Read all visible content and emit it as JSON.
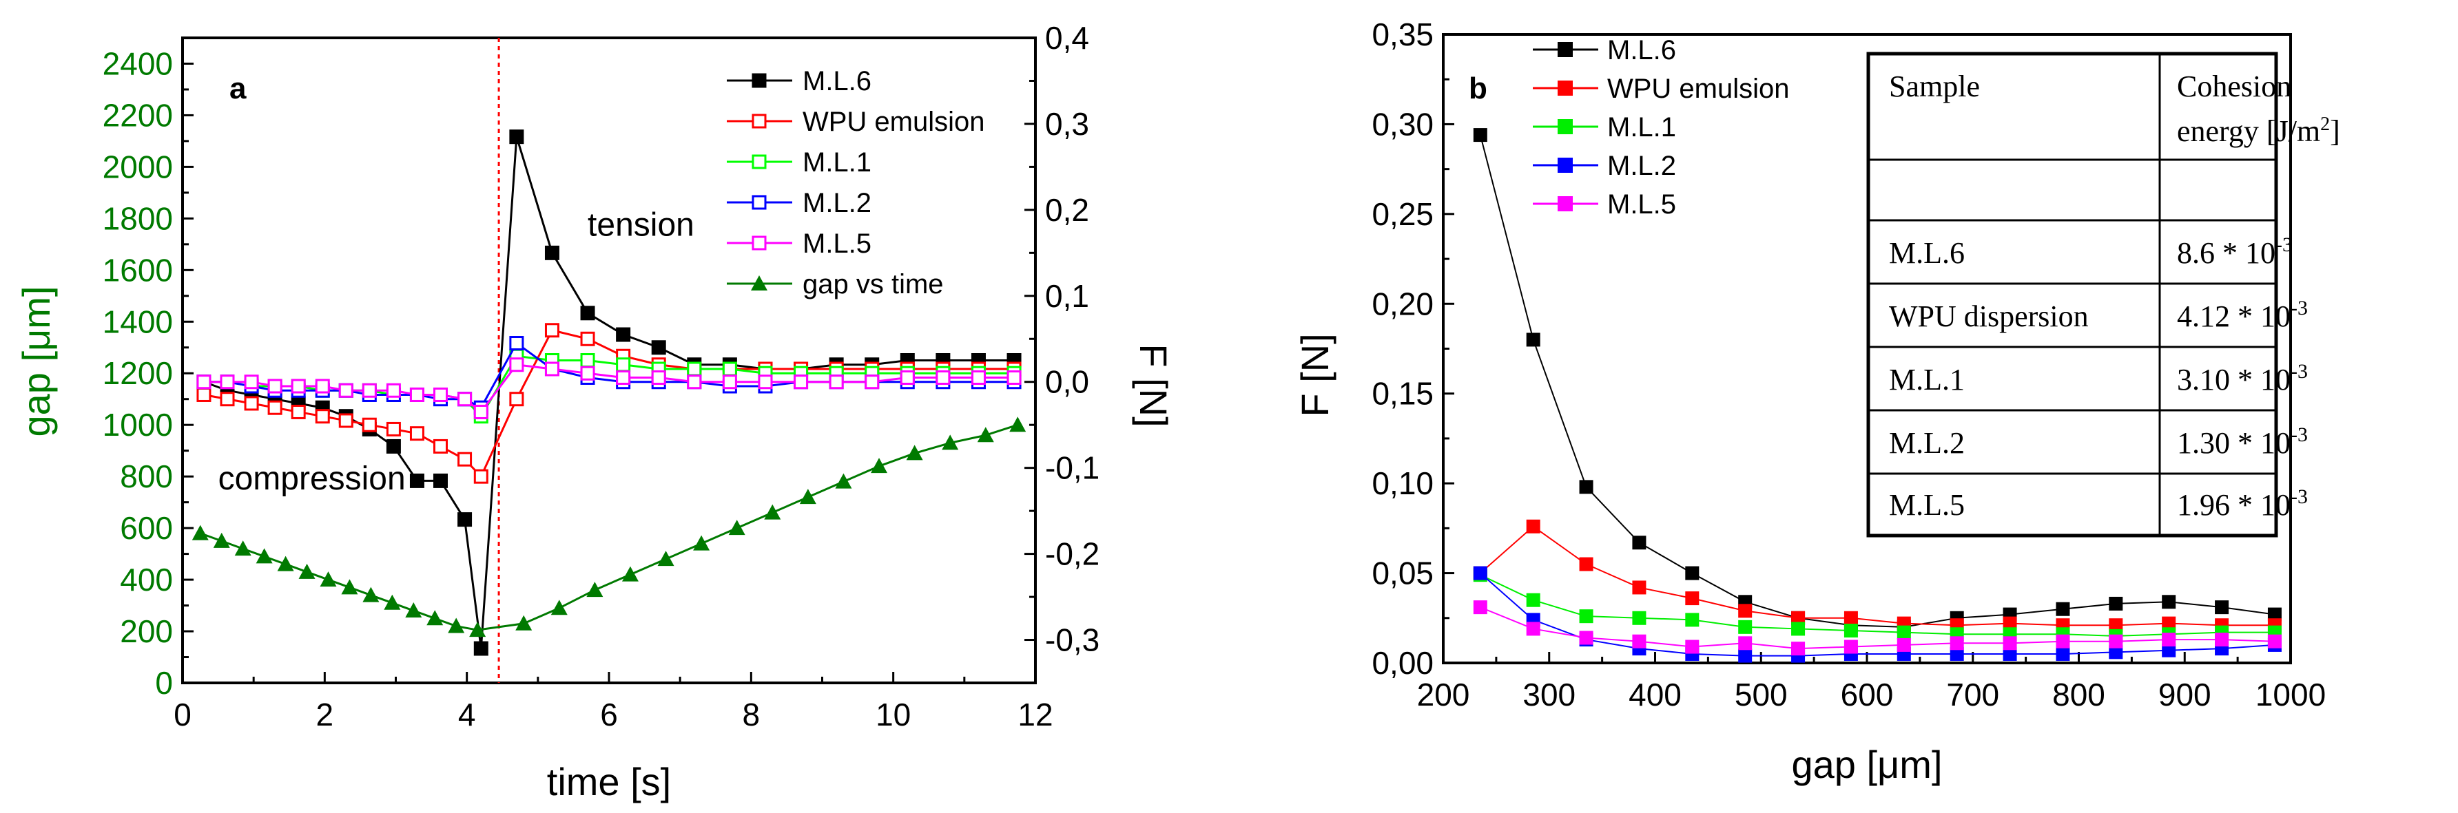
{
  "chart_data": [
    {
      "panel_label": "a",
      "type": "line",
      "xlabel": "time [s]",
      "ylabel_left": "gap [μm]",
      "ylabel_right": "F [N]",
      "xlim": [
        0,
        12
      ],
      "ylim_left": [
        0,
        2500
      ],
      "ylim_right": [
        -0.35,
        0.4
      ],
      "x_ticks": [
        0,
        2,
        4,
        6,
        8,
        10,
        12
      ],
      "x_tick_labels": [
        "0",
        "2",
        "4",
        "6",
        "8",
        "10",
        "12"
      ],
      "y_left_ticks": [
        0,
        200,
        400,
        600,
        800,
        1000,
        1200,
        1400,
        1600,
        1800,
        2000,
        2200,
        2400
      ],
      "y_left_tick_labels": [
        "0",
        "200",
        "400",
        "600",
        "800",
        "1000",
        "1200",
        "1400",
        "1600",
        "1800",
        "2000",
        "2200",
        "2400"
      ],
      "y_right_ticks": [
        -0.3,
        -0.2,
        -0.1,
        0.0,
        0.1,
        0.2,
        0.3,
        0.4
      ],
      "y_right_tick_labels": [
        "-0,3",
        "-0,2",
        "-0,1",
        "0,0",
        "0,1",
        "0,2",
        "0,3",
        "0,4"
      ],
      "vline_x": 4.45,
      "annotations": [
        {
          "text": "tension",
          "x": 5.7,
          "y_right": 0.17
        },
        {
          "text": "compression",
          "x": 0.5,
          "y_right": -0.125
        }
      ],
      "series": [
        {
          "name": "M.L.6",
          "axis": "right",
          "color": "#000000",
          "marker": "square-filled",
          "x": [
            0.3,
            0.63,
            0.97,
            1.3,
            1.63,
            1.97,
            2.3,
            2.63,
            2.97,
            3.3,
            3.63,
            3.97,
            4.2,
            4.7,
            5.2,
            5.7,
            6.2,
            6.7,
            7.2,
            7.7,
            8.2,
            8.7,
            9.2,
            9.7,
            10.2,
            10.7,
            11.2,
            11.7
          ],
          "y": [
            0.0,
            -0.01,
            -0.015,
            -0.02,
            -0.025,
            -0.03,
            -0.04,
            -0.055,
            -0.075,
            -0.115,
            -0.115,
            -0.16,
            -0.31,
            0.285,
            0.15,
            0.08,
            0.055,
            0.04,
            0.02,
            0.02,
            0.015,
            0.015,
            0.02,
            0.02,
            0.025,
            0.025,
            0.025,
            0.025
          ]
        },
        {
          "name": "WPU emulsion",
          "axis": "right",
          "color": "#ff0000",
          "marker": "square-open",
          "x": [
            0.3,
            0.63,
            0.97,
            1.3,
            1.63,
            1.97,
            2.3,
            2.63,
            2.97,
            3.3,
            3.63,
            3.97,
            4.2,
            4.7,
            5.2,
            5.7,
            6.2,
            6.7,
            7.2,
            7.7,
            8.2,
            8.7,
            9.2,
            9.7,
            10.2,
            10.7,
            11.2,
            11.7
          ],
          "y": [
            -0.015,
            -0.02,
            -0.025,
            -0.03,
            -0.035,
            -0.04,
            -0.045,
            -0.05,
            -0.055,
            -0.06,
            -0.075,
            -0.09,
            -0.11,
            -0.02,
            0.06,
            0.05,
            0.03,
            0.02,
            0.015,
            0.015,
            0.015,
            0.015,
            0.015,
            0.015,
            0.015,
            0.015,
            0.015,
            0.015
          ]
        },
        {
          "name": "M.L.1",
          "axis": "right",
          "color": "#00ff00",
          "marker": "square-open",
          "x": [
            0.3,
            0.63,
            0.97,
            1.3,
            1.63,
            1.97,
            2.3,
            2.63,
            2.97,
            3.3,
            3.63,
            3.97,
            4.2,
            4.7,
            5.2,
            5.7,
            6.2,
            6.7,
            7.2,
            7.7,
            8.2,
            8.7,
            9.2,
            9.7,
            10.2,
            10.7,
            11.2,
            11.7
          ],
          "y": [
            0.0,
            0.0,
            -0.005,
            -0.005,
            -0.005,
            -0.01,
            -0.01,
            -0.01,
            -0.015,
            -0.015,
            -0.015,
            -0.02,
            -0.04,
            0.03,
            0.025,
            0.025,
            0.02,
            0.015,
            0.015,
            0.015,
            0.01,
            0.01,
            0.01,
            0.01,
            0.01,
            0.01,
            0.01,
            0.01
          ]
        },
        {
          "name": "M.L.2",
          "axis": "right",
          "color": "#0000ff",
          "marker": "square-open",
          "x": [
            0.3,
            0.63,
            0.97,
            1.3,
            1.63,
            1.97,
            2.3,
            2.63,
            2.97,
            3.3,
            3.63,
            3.97,
            4.2,
            4.7,
            5.2,
            5.7,
            6.2,
            6.7,
            7.2,
            7.7,
            8.2,
            8.7,
            9.2,
            9.7,
            10.2,
            10.7,
            11.2,
            11.7
          ],
          "y": [
            0.0,
            0.0,
            -0.005,
            -0.01,
            -0.01,
            -0.01,
            -0.01,
            -0.015,
            -0.015,
            -0.015,
            -0.02,
            -0.02,
            -0.03,
            0.045,
            0.015,
            0.005,
            0.0,
            0.0,
            0.0,
            -0.005,
            -0.005,
            0.0,
            0.0,
            0.0,
            0.0,
            0.0,
            0.0,
            0.0
          ]
        },
        {
          "name": "M.L.5",
          "axis": "right",
          "color": "#ff00ff",
          "marker": "square-open",
          "x": [
            0.3,
            0.63,
            0.97,
            1.3,
            1.63,
            1.97,
            2.3,
            2.63,
            2.97,
            3.3,
            3.63,
            3.97,
            4.2,
            4.7,
            5.2,
            5.7,
            6.2,
            6.7,
            7.2,
            7.7,
            8.2,
            8.7,
            9.2,
            9.7,
            10.2,
            10.7,
            11.2,
            11.7
          ],
          "y": [
            0.0,
            0.0,
            0.0,
            -0.005,
            -0.005,
            -0.005,
            -0.01,
            -0.01,
            -0.01,
            -0.015,
            -0.015,
            -0.02,
            -0.035,
            0.02,
            0.015,
            0.01,
            0.005,
            0.005,
            0.0,
            0.0,
            0.0,
            0.0,
            0.0,
            0.0,
            0.005,
            0.005,
            0.005,
            0.005
          ]
        },
        {
          "name": "gap vs time",
          "axis": "left",
          "color": "#007a00",
          "marker": "triangle-filled",
          "x": [
            0.25,
            0.55,
            0.85,
            1.15,
            1.45,
            1.75,
            2.05,
            2.35,
            2.65,
            2.95,
            3.25,
            3.55,
            3.85,
            4.15,
            4.8,
            5.3,
            5.8,
            6.3,
            6.8,
            7.3,
            7.8,
            8.3,
            8.8,
            9.3,
            9.8,
            10.3,
            10.8,
            11.3,
            11.75
          ],
          "y": [
            580,
            550,
            520,
            490,
            460,
            430,
            400,
            370,
            340,
            310,
            280,
            250,
            220,
            205,
            230,
            290,
            360,
            420,
            480,
            540,
            600,
            660,
            720,
            780,
            840,
            890,
            930,
            960,
            1000
          ]
        }
      ]
    },
    {
      "panel_label": "b",
      "type": "line",
      "xlabel": "gap [μm]",
      "ylabel": "F [N]",
      "xlim": [
        200,
        1000
      ],
      "ylim": [
        0,
        0.35
      ],
      "x_ticks": [
        200,
        300,
        400,
        500,
        600,
        700,
        800,
        900,
        1000
      ],
      "x_tick_labels": [
        "200",
        "300",
        "400",
        "500",
        "600",
        "700",
        "800",
        "900",
        "1000"
      ],
      "y_ticks": [
        0,
        0.05,
        0.1,
        0.15,
        0.2,
        0.25,
        0.3,
        0.35
      ],
      "y_tick_labels": [
        "0,00",
        "0,05",
        "0,10",
        "0,15",
        "0,20",
        "0,25",
        "0,30",
        "0,35"
      ],
      "series": [
        {
          "name": "M.L.6",
          "color": "#000000",
          "x": [
            235,
            285,
            335,
            385,
            435,
            485,
            535,
            585,
            635,
            685,
            735,
            785,
            835,
            885,
            935,
            985
          ],
          "y": [
            0.294,
            0.18,
            0.098,
            0.067,
            0.05,
            0.034,
            0.025,
            0.021,
            0.02,
            0.025,
            0.027,
            0.03,
            0.033,
            0.034,
            0.031,
            0.027
          ]
        },
        {
          "name": "WPU emulsion",
          "color": "#ff0000",
          "x": [
            235,
            285,
            335,
            385,
            435,
            485,
            535,
            585,
            635,
            685,
            735,
            785,
            835,
            885,
            935,
            985
          ],
          "y": [
            0.05,
            0.076,
            0.055,
            0.042,
            0.036,
            0.029,
            0.025,
            0.025,
            0.022,
            0.021,
            0.022,
            0.021,
            0.021,
            0.022,
            0.021,
            0.021
          ]
        },
        {
          "name": "M.L.1",
          "color": "#00ee00",
          "x": [
            235,
            285,
            335,
            385,
            435,
            485,
            535,
            585,
            635,
            685,
            735,
            785,
            835,
            885,
            935,
            985
          ],
          "y": [
            0.049,
            0.035,
            0.026,
            0.025,
            0.024,
            0.02,
            0.019,
            0.018,
            0.017,
            0.016,
            0.016,
            0.016,
            0.015,
            0.016,
            0.017,
            0.017
          ]
        },
        {
          "name": "M.L.2",
          "color": "#0000ff",
          "x": [
            235,
            285,
            335,
            385,
            435,
            485,
            535,
            585,
            635,
            685,
            735,
            785,
            835,
            885,
            935,
            985
          ],
          "y": [
            0.05,
            0.024,
            0.013,
            0.008,
            0.005,
            0.004,
            0.004,
            0.005,
            0.005,
            0.005,
            0.005,
            0.005,
            0.006,
            0.007,
            0.008,
            0.01
          ]
        },
        {
          "name": "M.L.5",
          "color": "#ff00ff",
          "x": [
            235,
            285,
            335,
            385,
            435,
            485,
            535,
            585,
            635,
            685,
            735,
            785,
            835,
            885,
            935,
            985
          ],
          "y": [
            0.031,
            0.019,
            0.014,
            0.012,
            0.009,
            0.011,
            0.008,
            0.009,
            0.01,
            0.011,
            0.011,
            0.012,
            0.012,
            0.013,
            0.013,
            0.012
          ]
        }
      ],
      "table": {
        "header": [
          "Sample",
          "Cohesion energy [J/m²]"
        ],
        "header_col2_line1": "Cohesion",
        "header_col2_line2": "energy [J/m",
        "header_col2_sup": "2",
        "header_col2_end": "]",
        "rows": [
          {
            "sample": "M.L.6",
            "value": "8.6 * 10",
            "exp": "-3"
          },
          {
            "sample": "WPU dispersion",
            "value": "4.12 * 10",
            "exp": "-3"
          },
          {
            "sample": "M.L.1",
            "value": "3.10 * 10",
            "exp": "-3"
          },
          {
            "sample": "M.L.2",
            "value": "1.30 * 10",
            "exp": "-3"
          },
          {
            "sample": "M.L.5",
            "value": "1.96 * 10",
            "exp": "-3"
          }
        ]
      }
    }
  ]
}
